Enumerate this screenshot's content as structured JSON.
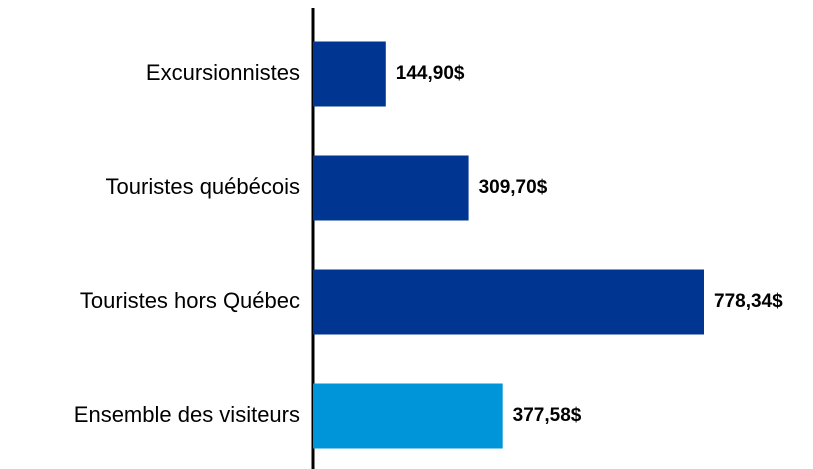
{
  "chart_data": {
    "type": "barh",
    "categories": [
      "Excursionnistes",
      "Touristes québécois",
      "Touristes hors Québec",
      "Ensemble des visiteurs"
    ],
    "values": [
      144.9,
      309.7,
      778.34,
      377.58
    ],
    "value_labels": [
      "144,90$",
      "309,70$",
      "778,34$",
      "377,58$"
    ],
    "colors": [
      "#003591",
      "#003591",
      "#003591",
      "#0094d9"
    ]
  }
}
